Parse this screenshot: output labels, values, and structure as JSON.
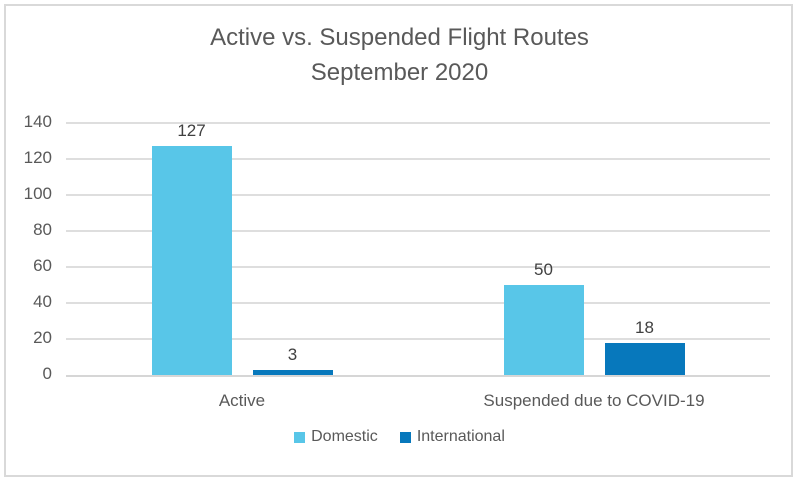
{
  "chart": {
    "title_line1": "Active vs. Suspended Flight Routes",
    "title_line2": "September 2020"
  },
  "chart_data": {
    "type": "bar",
    "title": "Active vs. Suspended Flight Routes September 2020",
    "categories": [
      "Active",
      "Suspended due to COVID-19"
    ],
    "series": [
      {
        "name": "Domestic",
        "color": "#58C6E8",
        "values": [
          127,
          50
        ]
      },
      {
        "name": "International",
        "color": "#0778BC",
        "values": [
          3,
          18
        ]
      }
    ],
    "ylim": [
      0,
      140
    ],
    "yticks": [
      0,
      20,
      40,
      60,
      80,
      100,
      120,
      140
    ],
    "grid": true,
    "legend_position": "bottom",
    "data_labels": true,
    "colors": {
      "grid": "#DEDEDE",
      "axis": "#D6D6D6",
      "border": "#D9D9D9",
      "text": "#595959",
      "data_label_text": "#404040"
    }
  }
}
